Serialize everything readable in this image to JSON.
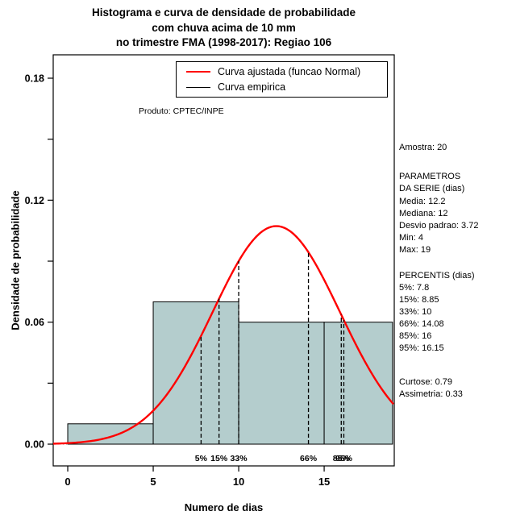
{
  "title": {
    "line1": "Histograma e curva de densidade de probabilidade",
    "line2": "com chuva acima de 10 mm",
    "line3": "no trimestre FMA (1998-2017): Regiao 106"
  },
  "legend": {
    "fitted_label": "Curva ajustada (funcao Normal)",
    "empirical_label": "Curva empirica"
  },
  "annotation": "Produto: CPTEC/INPE",
  "axes": {
    "x_label": "Numero de dias",
    "y_label": "Densidade de probabilidade"
  },
  "stats": {
    "amostra": "Amostra: 20",
    "params_header1": " PARAMETROS",
    "params_header2": "DA SERIE (dias)",
    "media": "Media: 12.2",
    "mediana": "Mediana: 12",
    "desvio": "Desvio padrao: 3.72",
    "min": "Min: 4",
    "max": "Max: 19",
    "percentis_header": "PERCENTIS (dias)",
    "p5": "5%: 7.8",
    "p15": "15%: 8.85",
    "p33": "33%: 10",
    "p66": "66%: 14.08",
    "p85": "85%: 16",
    "p95": "95%: 16.15",
    "curtose": "Curtose: 0.79",
    "assimetria": "Assimetria: 0.33"
  },
  "chart_data": {
    "type": "bar",
    "subtype": "histogram_with_fitted_normal_density",
    "title": "Histograma e curva de densidade de probabilidade com chuva acima de 10 mm no trimestre FMA (1998-2017): Regiao 106",
    "xlabel": "Numero de dias",
    "ylabel": "Densidade de probabilidade",
    "sample_n": 20,
    "xlim": [
      -0.85,
      19.1
    ],
    "ylim": [
      -0.0107,
      0.1915
    ],
    "bars": [
      {
        "x0": 0,
        "x1": 5,
        "density": 0.01
      },
      {
        "x0": 5,
        "x1": 10,
        "density": 0.07
      },
      {
        "x0": 10,
        "x1": 15,
        "density": 0.06
      },
      {
        "x0": 15,
        "x1": 19,
        "density": 0.06
      }
    ],
    "normal_curve": {
      "mean": 12.2,
      "sd": 3.72,
      "color": "#FF0000"
    },
    "percentiles": [
      {
        "label": "5%",
        "x": 7.8
      },
      {
        "label": "15%",
        "x": 8.85
      },
      {
        "label": "33%",
        "x": 10
      },
      {
        "label": "66%",
        "x": 14.08
      },
      {
        "label": "85%",
        "x": 16
      },
      {
        "label": "95%",
        "x": 16.15
      }
    ],
    "x_ticks": [
      0,
      5,
      10,
      15
    ],
    "y_ticks_major": {
      "values": [
        0,
        0.06,
        0.12,
        0.18
      ],
      "labels": [
        "0.00",
        "0.06",
        "0.12",
        "0.18"
      ]
    },
    "y_ticks_minor": [
      0.03,
      0.09,
      0.15
    ],
    "hist_fill": "#B4CDCD",
    "grid": "dotted baseline at y=0",
    "legend_position": "top-center-inside"
  }
}
